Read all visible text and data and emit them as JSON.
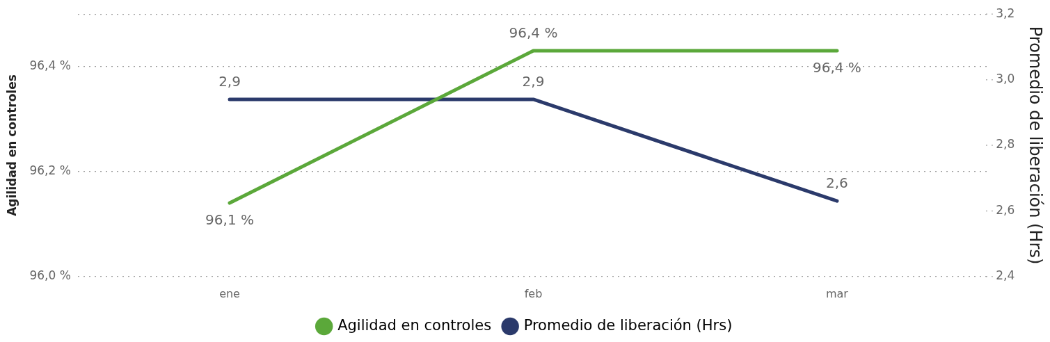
{
  "chart_data": {
    "type": "line",
    "xlabel": null,
    "ylabel": "Agilidad en controles",
    "y2label": "Promedio de liberación (Hrs)",
    "categories": [
      "ene",
      "feb",
      "mar"
    ],
    "series": [
      {
        "name": "Agilidad en controles",
        "color": "#5ba83a",
        "values": [
          96.14,
          96.43,
          96.43
        ],
        "value_labels": [
          "96,1 %",
          "96,4 %",
          "96,4 %"
        ]
      },
      {
        "name": "Promedio de liberación (Hrs)",
        "color": "#2b3a6b",
        "axis": "y2",
        "values": [
          2.94,
          2.94,
          2.63
        ],
        "value_labels": [
          "2,9",
          "2,9",
          "2,6"
        ]
      }
    ],
    "ylim": [
      96.0,
      96.5
    ],
    "yticks": [
      {
        "value": 96.0,
        "label": "96,0 %"
      },
      {
        "value": 96.2,
        "label": "96,2 %"
      },
      {
        "value": 96.4,
        "label": "96,4 %"
      },
      {
        "value": 96.5,
        "label": null
      }
    ],
    "y2lim": [
      2.4,
      3.2
    ],
    "y2ticks": [
      {
        "value": 2.4,
        "label": "2,4"
      },
      {
        "value": 2.6,
        "label": "2,6"
      },
      {
        "value": 2.8,
        "label": "2,8"
      },
      {
        "value": 3.0,
        "label": "3,0"
      },
      {
        "value": 3.2,
        "label": "3,2"
      }
    ],
    "grid": "y",
    "legend": "bottom",
    "marker": "none",
    "line_style": "solid"
  }
}
